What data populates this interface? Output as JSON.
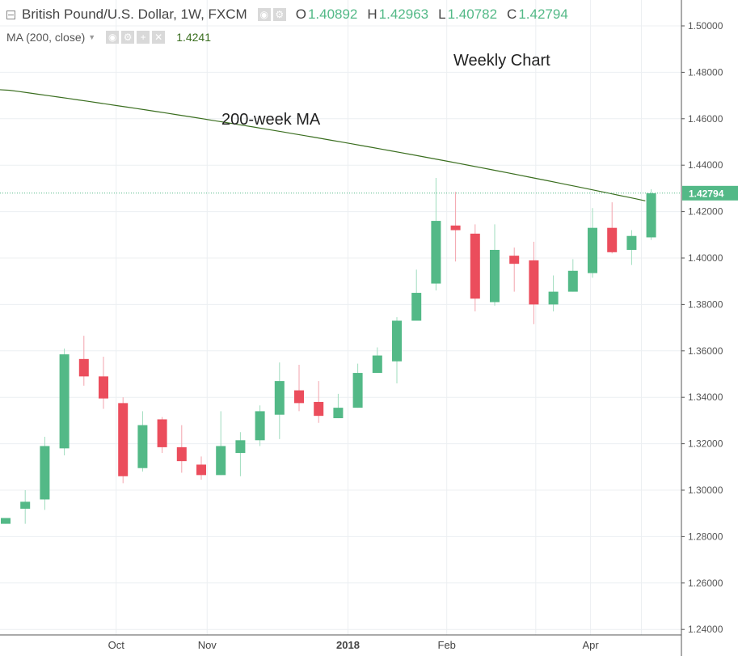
{
  "header": {
    "symbol_title": "British Pound/U.S. Dollar, 1W, FXCM",
    "ohlc": [
      {
        "key": "O",
        "value": "1.40892"
      },
      {
        "key": "H",
        "value": "1.42963"
      },
      {
        "key": "L",
        "value": "1.40782"
      },
      {
        "key": "C",
        "value": "1.42794"
      }
    ],
    "ma_label": "MA (200, close)",
    "ma_value": "1.4241"
  },
  "annotations": {
    "weekly_chart": "Weekly Chart",
    "ma_label": "200-week MA"
  },
  "last_price": "1.42794",
  "colors": {
    "up": "#53b987",
    "down": "#eb4d5c",
    "ma_line": "#3a6e1f",
    "last_price_line": "#53b987",
    "grid": "#eceff2"
  },
  "chart_data": {
    "type": "candlestick",
    "ylim": [
      1.235,
      1.505
    ],
    "y_ticks": [
      "1.24000",
      "1.26000",
      "1.28000",
      "1.30000",
      "1.32000",
      "1.34000",
      "1.36000",
      "1.38000",
      "1.40000",
      "1.42000",
      "1.44000",
      "1.46000",
      "1.48000",
      "1.50000"
    ],
    "x_labels": [
      "Oct",
      "Nov",
      "2018",
      "Feb",
      "Apr"
    ],
    "grid": true,
    "candles": [
      {
        "o": 1.2855,
        "h": 1.288,
        "l": 1.2855,
        "c": 1.288
      },
      {
        "o": 1.292,
        "h": 1.3,
        "l": 1.2855,
        "c": 1.295
      },
      {
        "o": 1.296,
        "h": 1.323,
        "l": 1.2915,
        "c": 1.319
      },
      {
        "o": 1.318,
        "h": 1.361,
        "l": 1.315,
        "c": 1.3585
      },
      {
        "o": 1.3565,
        "h": 1.3665,
        "l": 1.345,
        "c": 1.349
      },
      {
        "o": 1.349,
        "h": 1.3575,
        "l": 1.335,
        "c": 1.3395
      },
      {
        "o": 1.3375,
        "h": 1.34,
        "l": 1.303,
        "c": 1.306
      },
      {
        "o": 1.3095,
        "h": 1.334,
        "l": 1.308,
        "c": 1.328
      },
      {
        "o": 1.3305,
        "h": 1.3315,
        "l": 1.316,
        "c": 1.3185
      },
      {
        "o": 1.3185,
        "h": 1.328,
        "l": 1.3075,
        "c": 1.3125
      },
      {
        "o": 1.311,
        "h": 1.3145,
        "l": 1.3045,
        "c": 1.3065
      },
      {
        "o": 1.3065,
        "h": 1.334,
        "l": 1.3065,
        "c": 1.319
      },
      {
        "o": 1.316,
        "h": 1.325,
        "l": 1.306,
        "c": 1.3215
      },
      {
        "o": 1.3215,
        "h": 1.3365,
        "l": 1.319,
        "c": 1.334
      },
      {
        "o": 1.3325,
        "h": 1.355,
        "l": 1.322,
        "c": 1.347
      },
      {
        "o": 1.343,
        "h": 1.354,
        "l": 1.334,
        "c": 1.3375
      },
      {
        "o": 1.338,
        "h": 1.347,
        "l": 1.329,
        "c": 1.332
      },
      {
        "o": 1.331,
        "h": 1.3415,
        "l": 1.331,
        "c": 1.3355
      },
      {
        "o": 1.3355,
        "h": 1.3545,
        "l": 1.3355,
        "c": 1.3505
      },
      {
        "o": 1.3505,
        "h": 1.3615,
        "l": 1.3505,
        "c": 1.358
      },
      {
        "o": 1.3555,
        "h": 1.3745,
        "l": 1.346,
        "c": 1.373
      },
      {
        "o": 1.373,
        "h": 1.395,
        "l": 1.373,
        "c": 1.385
      },
      {
        "o": 1.389,
        "h": 1.4345,
        "l": 1.386,
        "c": 1.416
      },
      {
        "o": 1.414,
        "h": 1.4285,
        "l": 1.3985,
        "c": 1.412
      },
      {
        "o": 1.4105,
        "h": 1.4145,
        "l": 1.377,
        "c": 1.3825
      },
      {
        "o": 1.381,
        "h": 1.4145,
        "l": 1.3795,
        "c": 1.4035
      },
      {
        "o": 1.401,
        "h": 1.4045,
        "l": 1.3855,
        "c": 1.3975
      },
      {
        "o": 1.399,
        "h": 1.407,
        "l": 1.3715,
        "c": 1.38
      },
      {
        "o": 1.38,
        "h": 1.3925,
        "l": 1.377,
        "c": 1.3855
      },
      {
        "o": 1.3855,
        "h": 1.3995,
        "l": 1.3855,
        "c": 1.3945
      },
      {
        "o": 1.3935,
        "h": 1.4215,
        "l": 1.3915,
        "c": 1.413
      },
      {
        "o": 1.413,
        "h": 1.424,
        "l": 1.402,
        "c": 1.4025
      },
      {
        "o": 1.4035,
        "h": 1.412,
        "l": 1.397,
        "c": 1.4095
      },
      {
        "o": 1.4089,
        "h": 1.4296,
        "l": 1.4078,
        "c": 1.4279
      }
    ],
    "ma_line": {
      "name": "200-week MA",
      "start": 1.4725,
      "end": 1.4241
    },
    "last_price": 1.42794
  }
}
